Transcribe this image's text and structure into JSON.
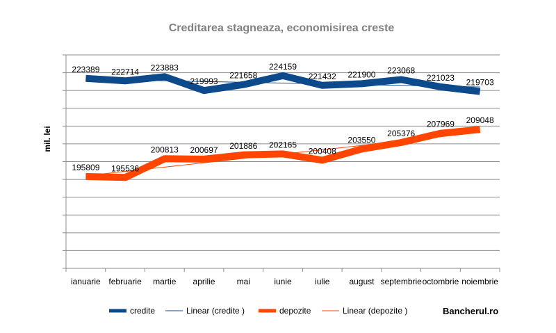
{
  "chart_data": {
    "type": "line",
    "title": "Creditarea stagneaza, economisirea creste",
    "ylabel": "mil. lei",
    "xlabel": "",
    "categories": [
      "ianuarie",
      "februarie",
      "martie",
      "aprilie",
      "mai",
      "iunie",
      "iulie",
      "august",
      "septembrie",
      "octombrie",
      "noiembrie"
    ],
    "ylim": [
      170000,
      230000
    ],
    "grid": true,
    "legend_position": "bottom",
    "series": [
      {
        "name": "credite",
        "color": "#0D4A8C",
        "values": [
          223389,
          222714,
          223883,
          219993,
          221658,
          224159,
          221432,
          221900,
          223068,
          221023,
          219703
        ]
      },
      {
        "name": "depozite",
        "color": "#FF4500",
        "values": [
          195809,
          195536,
          200813,
          200697,
          201886,
          202165,
          200408,
          203550,
          205376,
          207969,
          209048
        ]
      }
    ],
    "trendlines": [
      {
        "name": "Linear (credite )",
        "of": "credite",
        "color": "#0D4A8C"
      },
      {
        "name": "Linear (depozite )",
        "of": "depozite",
        "color": "#FF4500"
      }
    ],
    "watermark": "Bancherul.ro"
  }
}
